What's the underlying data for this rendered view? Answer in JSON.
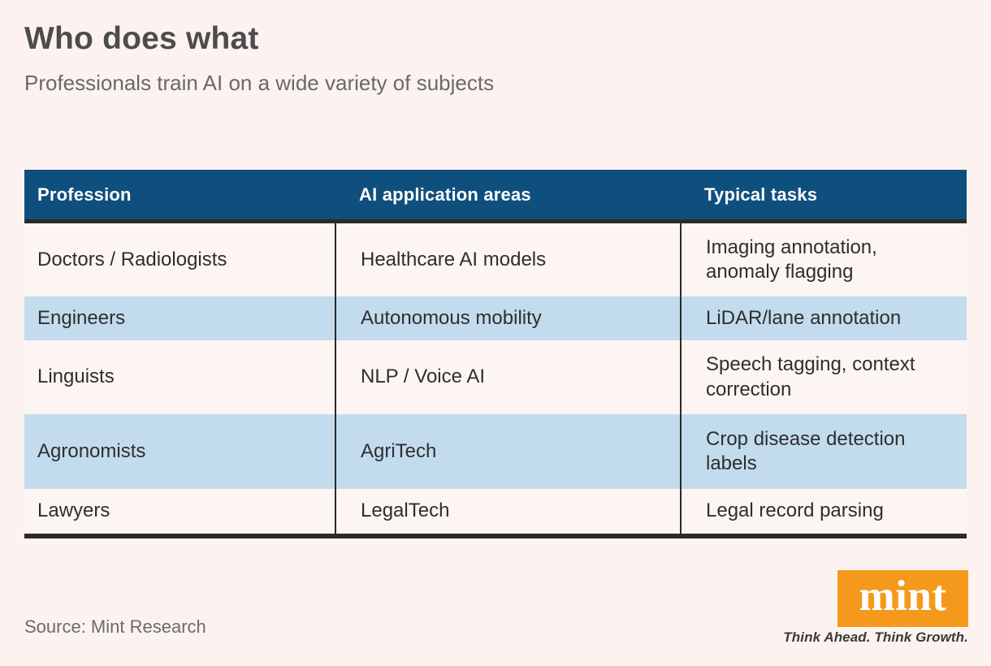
{
  "chart_data": {
    "type": "table",
    "title": "Who does what",
    "subtitle": "Professionals train AI on a wide variety of subjects",
    "columns": [
      "Profession",
      "AI application areas",
      "Typical tasks"
    ],
    "rows": [
      [
        "Doctors / Radiologists",
        "Healthcare AI models",
        "Imaging annotation, anomaly flagging"
      ],
      [
        "Engineers",
        "Autonomous mobility",
        "LiDAR/lane annotation"
      ],
      [
        "Linguists",
        "NLP / Voice AI",
        "Speech tagging, context correction"
      ],
      [
        "Agronomists",
        "AgriTech",
        "Crop disease detection labels"
      ],
      [
        "Lawyers",
        "LegalTech",
        "Legal record parsing"
      ]
    ],
    "highlighted_rows": [
      1,
      3
    ],
    "source": "Source: Mint Research",
    "layout": {
      "header_bg": "#0f4f7e",
      "highlight_row_bg": "#c2dcee",
      "row_bg": "#fdf5f2",
      "page_bg": "#fcf3f0",
      "border_color": "#2b2a28",
      "grid": "column dividers + thick header/footer rules, no outer side borders"
    }
  },
  "branding": {
    "logo_text": "mint",
    "logo_bg_color": "#f5991d",
    "tagline": "Think Ahead. Think Growth."
  }
}
